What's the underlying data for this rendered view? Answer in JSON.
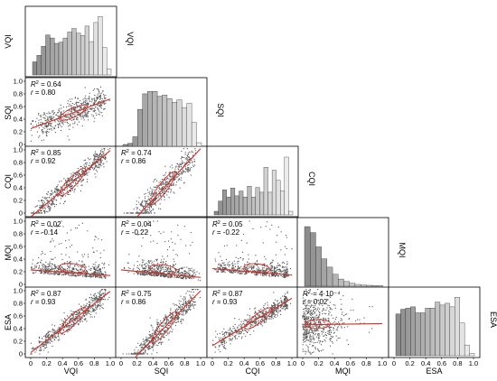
{
  "chart_data": {
    "type": "scatter",
    "variables": [
      "VQI",
      "SQI",
      "CQI",
      "MQI",
      "ESA"
    ],
    "axis_range": [
      0,
      1.0
    ],
    "ticks": [
      "0",
      "0.2",
      "0.4",
      "0.6",
      "0.8",
      "1.0"
    ],
    "histograms": {
      "VQI": [
        0.22,
        0.33,
        0.48,
        0.67,
        0.62,
        0.53,
        0.55,
        0.62,
        0.72,
        0.78,
        0.7,
        0.66,
        0.82,
        0.56,
        0.88,
        0.98,
        0.46,
        0.1
      ],
      "SQI": [
        0.03,
        0.05,
        0.16,
        0.62,
        0.88,
        0.92,
        0.92,
        0.84,
        0.86,
        0.8,
        0.74,
        0.78,
        0.65,
        0.72,
        0.4,
        0.06
      ],
      "CQI": [
        0.06,
        0.23,
        0.42,
        0.3,
        0.45,
        0.32,
        0.4,
        0.3,
        0.48,
        0.3,
        0.46,
        0.38,
        0.8,
        0.38,
        0.75,
        0.58,
        0.4,
        0.97,
        0.06
      ],
      "MQI": [
        1.0,
        0.9,
        0.66,
        0.46,
        0.32,
        0.2,
        0.12,
        0.08,
        0.05,
        0.03,
        0.02,
        0.015,
        0.01,
        0.005
      ],
      "ESA": [
        0.7,
        0.78,
        0.8,
        0.82,
        0.72,
        0.72,
        0.8,
        0.8,
        0.9,
        0.85,
        0.88,
        0.82,
        0.98,
        0.55,
        0.18,
        0.04
      ]
    },
    "pairs": [
      {
        "x": "VQI",
        "y": "SQI",
        "r2": "0.64",
        "r": "0.80",
        "slope": 0.47,
        "intercept": 0.25,
        "noise": 0.1
      },
      {
        "x": "VQI",
        "y": "CQI",
        "r2": "0.85",
        "r": "0.92",
        "slope": 1.05,
        "intercept": -0.06,
        "noise": 0.08
      },
      {
        "x": "SQI",
        "y": "CQI",
        "r2": "0.74",
        "r": "0.86",
        "slope": 1.35,
        "intercept": -0.33,
        "noise": 0.11
      },
      {
        "x": "VQI",
        "y": "MQI",
        "r2": "0.02",
        "r": "-0.14",
        "slope": -0.09,
        "intercept": 0.23,
        "noise": 0.09
      },
      {
        "x": "SQI",
        "y": "MQI",
        "r2": "0.04",
        "r": "-0.22",
        "slope": -0.12,
        "intercept": 0.23,
        "noise": 0.09
      },
      {
        "x": "CQI",
        "y": "MQI",
        "r2": "0.05",
        "r": "-0.22",
        "slope": -0.1,
        "intercept": 0.25,
        "noise": 0.09
      },
      {
        "x": "VQI",
        "y": "ESA",
        "r2": "0.87",
        "r": "0.93",
        "slope": 0.97,
        "intercept": 0.02,
        "noise": 0.07
      },
      {
        "x": "SQI",
        "y": "ESA",
        "r2": "0.75",
        "r": "0.86",
        "slope": 1.28,
        "intercept": -0.28,
        "noise": 0.1
      },
      {
        "x": "CQI",
        "y": "ESA",
        "r2": "0.87",
        "r": "0.93",
        "slope": 0.75,
        "intercept": 0.13,
        "noise": 0.07
      },
      {
        "x": "MQI",
        "y": "ESA",
        "r2": "4·10⁻⁴",
        "r": "0.02",
        "slope": 0.02,
        "intercept": 0.46,
        "noise": 0.2
      }
    ],
    "colors": {
      "points": "#555555",
      "fit": "#d0302a",
      "bar_dark": "#8c8c8c",
      "bar_light": "#f2f2f2"
    }
  }
}
